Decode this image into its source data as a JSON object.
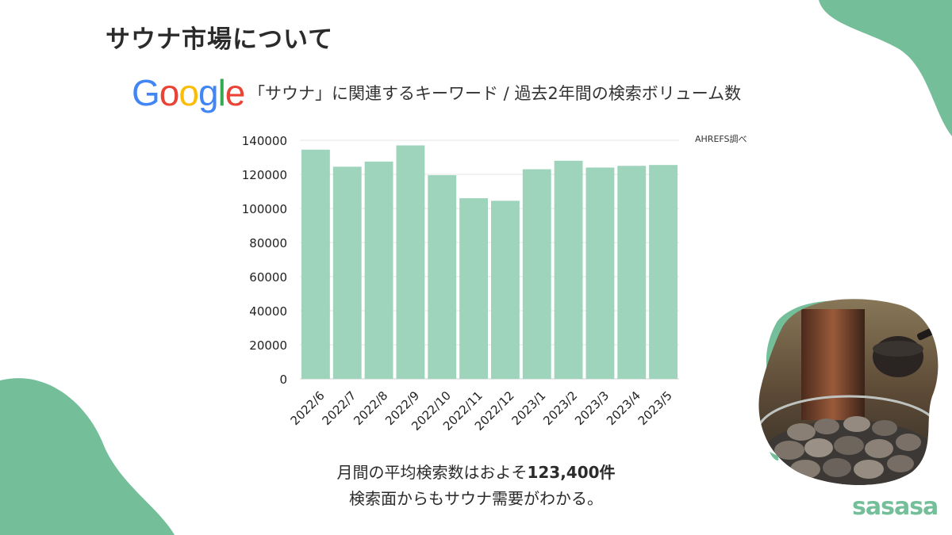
{
  "title": "サウナ市場について",
  "subtitle": "「サウナ」に関連するキーワード / 過去2年間の検索ボリューム数",
  "google_logo": {
    "text": "Google",
    "letters": [
      {
        "char": "G",
        "color": "#4285F4"
      },
      {
        "char": "o",
        "color": "#EA4335"
      },
      {
        "char": "o",
        "color": "#FBBC05"
      },
      {
        "char": "g",
        "color": "#4285F4"
      },
      {
        "char": "l",
        "color": "#34A853"
      },
      {
        "char": "e",
        "color": "#EA4335"
      }
    ]
  },
  "source_note": "AHREFS調べ",
  "summary": {
    "line1_prefix": "月間の平均検索数はおよそ",
    "line1_highlight": "123,400件",
    "line2": "検索面からもサウナ需要がわかる。"
  },
  "brand": "sasasa",
  "colors": {
    "bar": "#9dd4bb",
    "accent": "#74bf9a",
    "text": "#2b2b2b"
  },
  "chart_data": {
    "type": "bar",
    "categories": [
      "2022/6",
      "2022/7",
      "2022/8",
      "2022/9",
      "2022/10",
      "2022/11",
      "2022/12",
      "2023/1",
      "2023/2",
      "2023/3",
      "2023/4",
      "2023/5"
    ],
    "values": [
      134500,
      124500,
      127500,
      137000,
      119500,
      106000,
      104500,
      123000,
      128000,
      124000,
      125000,
      125500
    ],
    "ylim": [
      0,
      140000
    ],
    "yticks": [
      0,
      20000,
      40000,
      60000,
      80000,
      100000,
      120000,
      140000
    ],
    "grid": true,
    "legend": "none"
  }
}
